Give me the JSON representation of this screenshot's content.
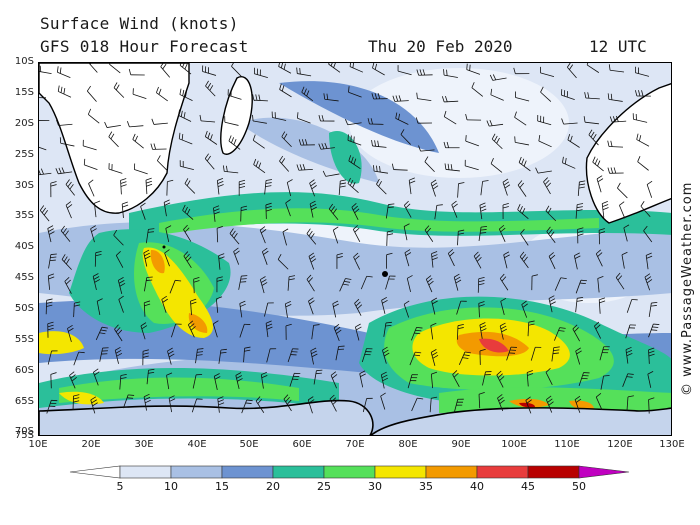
{
  "header": {
    "title": "Surface Wind (knots)",
    "subtitle": "GFS 018 Hour Forecast",
    "date": "Thu 20 Feb 2020",
    "time": "12 UTC"
  },
  "credit": "© www.PassageWeather.com",
  "axes": {
    "lat_labels": [
      "10S",
      "15S",
      "20S",
      "25S",
      "30S",
      "35S",
      "40S",
      "45S",
      "50S",
      "55S",
      "60S",
      "65S",
      "70S",
      "75S"
    ],
    "lon_labels": [
      "10E",
      "20E",
      "30E",
      "40E",
      "50E",
      "60E",
      "70E",
      "80E",
      "90E",
      "100E",
      "110E",
      "120E",
      "130E"
    ],
    "lat_range": [
      -10,
      -75
    ],
    "lon_range": [
      10,
      130
    ]
  },
  "legend": {
    "ticks": [
      "5",
      "10",
      "15",
      "20",
      "25",
      "30",
      "35",
      "40",
      "45",
      "50"
    ],
    "colors": [
      "#ffffff",
      "#dde6f5",
      "#a9c0e4",
      "#6d93d1",
      "#2bbf9a",
      "#55e05a",
      "#f4e600",
      "#f39a00",
      "#e83c3c",
      "#b80000",
      "#c000c0"
    ]
  },
  "colors": {
    "land": "#ffffff",
    "ocean_base": "#d7e2f2",
    "coast": "#000000",
    "barb": "#111111"
  }
}
